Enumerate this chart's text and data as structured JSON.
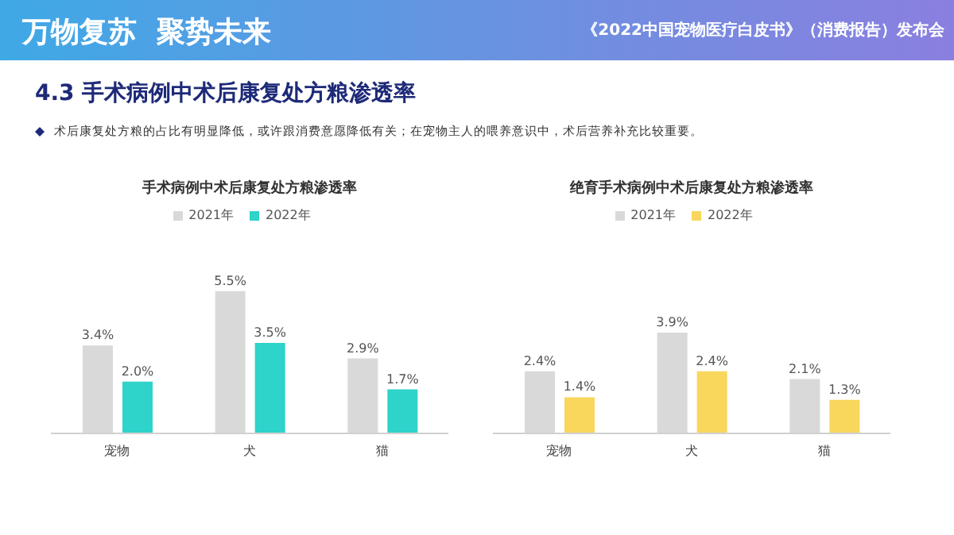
{
  "chart_data": [
    {
      "type": "bar",
      "title": "手术病例中术后康复处方粮渗透率",
      "categories": [
        "宠物",
        "犬",
        "猫"
      ],
      "series": [
        {
          "name": "2021年",
          "color": "#d9d9d9",
          "values": [
            3.4,
            5.5,
            2.9
          ],
          "value_labels": [
            "3.4%",
            "5.5%",
            "2.9%"
          ]
        },
        {
          "name": "2022年",
          "color": "#2ed3c9",
          "values": [
            2.0,
            3.5,
            1.7
          ],
          "value_labels": [
            "2.0%",
            "3.5%",
            "1.7%"
          ]
        }
      ],
      "legend": "top",
      "annotations": [
        "万物复苏  聚势未来",
        "《2022中国宠物医疗白皮书》（消费报告）发布会",
        "4.3 手术病例中术后康复处方粮渗透率",
        "术后康复处方粮的占比有明显降低，或许跟消费意愿降低有关；在宠物主人的喂养意识中，术后营养补充比较重要。"
      ]
    },
    {
      "type": "bar",
      "title": "绝育手术病例中术后康复处方粮渗透率",
      "categories": [
        "宠物",
        "犬",
        "猫"
      ],
      "series": [
        {
          "name": "2021年",
          "color": "#d9d9d9",
          "values": [
            2.4,
            3.9,
            2.1
          ],
          "value_labels": [
            "2.4%",
            "3.9%",
            "2.1%"
          ]
        },
        {
          "name": "2022年",
          "color": "#f9d65c",
          "values": [
            1.4,
            2.4,
            1.3
          ],
          "value_labels": [
            "1.4%",
            "2.4%",
            "1.3%"
          ]
        }
      ],
      "legend": "top"
    }
  ]
}
